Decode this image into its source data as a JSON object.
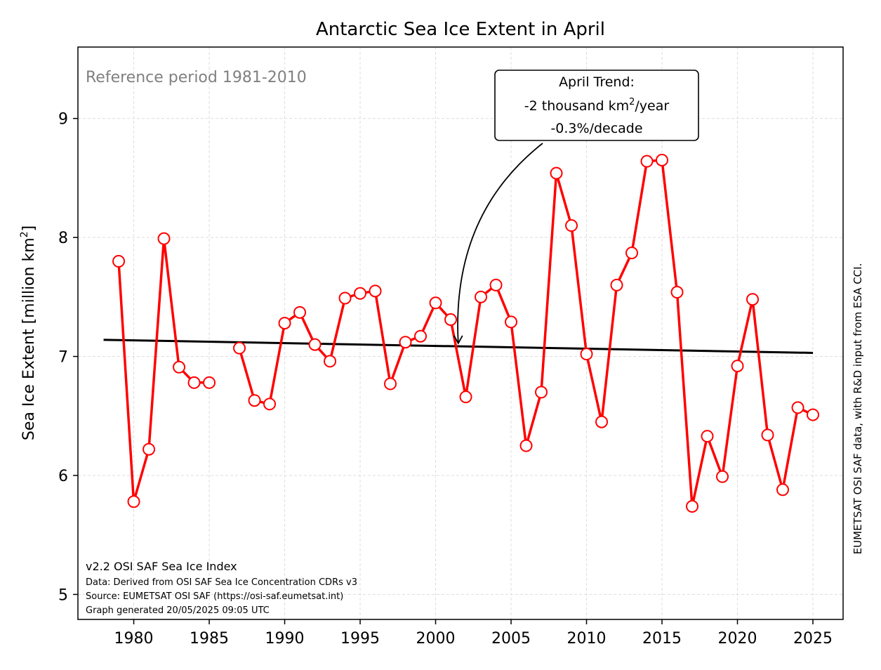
{
  "chart_data": {
    "type": "line",
    "title": "Antarctic Sea Ice Extent in April",
    "xlabel": "",
    "ylabel_main": "Sea Ice Extent [million km",
    "ylabel_sup": "2",
    "ylabel_end": "]",
    "xlim": [
      1976.3,
      2027.0
    ],
    "ylim": [
      4.79,
      9.6
    ],
    "xticks": [
      1980,
      1985,
      1990,
      1995,
      2000,
      2005,
      2010,
      2015,
      2020,
      2025
    ],
    "yticks": [
      5,
      6,
      7,
      8,
      9
    ],
    "grid": true,
    "reference_label": "Reference period 1981-2010",
    "series": [
      {
        "color": "#ff0000",
        "segments": [
          [
            {
              "x": 1979,
              "y": 7.8
            },
            {
              "x": 1980,
              "y": 5.78
            },
            {
              "x": 1981,
              "y": 6.22
            },
            {
              "x": 1982,
              "y": 7.99
            },
            {
              "x": 1983,
              "y": 6.91
            },
            {
              "x": 1984,
              "y": 6.78
            },
            {
              "x": 1985,
              "y": 6.78
            }
          ],
          [
            {
              "x": 1987,
              "y": 7.07
            },
            {
              "x": 1988,
              "y": 6.63
            },
            {
              "x": 1989,
              "y": 6.6
            },
            {
              "x": 1990,
              "y": 7.28
            },
            {
              "x": 1991,
              "y": 7.37
            },
            {
              "x": 1992,
              "y": 7.1
            },
            {
              "x": 1993,
              "y": 6.96
            },
            {
              "x": 1994,
              "y": 7.49
            },
            {
              "x": 1995,
              "y": 7.53
            },
            {
              "x": 1996,
              "y": 7.55
            },
            {
              "x": 1997,
              "y": 6.77
            },
            {
              "x": 1998,
              "y": 7.12
            },
            {
              "x": 1999,
              "y": 7.17
            },
            {
              "x": 2000,
              "y": 7.45
            },
            {
              "x": 2001,
              "y": 7.31
            },
            {
              "x": 2002,
              "y": 6.66
            },
            {
              "x": 2003,
              "y": 7.5
            },
            {
              "x": 2004,
              "y": 7.6
            },
            {
              "x": 2005,
              "y": 7.29
            },
            {
              "x": 2006,
              "y": 6.25
            },
            {
              "x": 2007,
              "y": 6.7
            },
            {
              "x": 2008,
              "y": 8.54
            },
            {
              "x": 2009,
              "y": 8.1
            },
            {
              "x": 2010,
              "y": 7.02
            },
            {
              "x": 2011,
              "y": 6.45
            },
            {
              "x": 2012,
              "y": 7.6
            },
            {
              "x": 2013,
              "y": 7.87
            },
            {
              "x": 2014,
              "y": 8.64
            },
            {
              "x": 2015,
              "y": 8.65
            },
            {
              "x": 2016,
              "y": 7.54
            },
            {
              "x": 2017,
              "y": 5.74
            },
            {
              "x": 2018,
              "y": 6.33
            },
            {
              "x": 2019,
              "y": 5.99
            },
            {
              "x": 2020,
              "y": 6.92
            },
            {
              "x": 2021,
              "y": 7.48
            },
            {
              "x": 2022,
              "y": 6.34
            },
            {
              "x": 2023,
              "y": 5.88
            },
            {
              "x": 2024,
              "y": 6.57
            },
            {
              "x": 2025,
              "y": 6.51
            }
          ]
        ]
      }
    ],
    "trend": {
      "color": "#000000",
      "points": [
        {
          "x": 1978,
          "y": 7.14
        },
        {
          "x": 2025,
          "y": 7.03
        }
      ]
    },
    "trend_annotation": {
      "line1": "April Trend:",
      "line2_main": "-2 thousand km",
      "line2_sup": "2",
      "line2_end": "/year",
      "line3": "-0.3%/decade",
      "arrow_target": {
        "x": 2001.5,
        "y": 7.11
      }
    },
    "footer": {
      "line1": "v2.2 OSI SAF Sea Ice Index",
      "line2": "Data: Derived from OSI SAF Sea Ice Concentration CDRs v3",
      "line3": "Source: EUMETSAT OSI SAF (https://osi-saf.eumetsat.int)",
      "line4": "Graph generated 20/05/2025 09:05 UTC"
    },
    "side_credit": "EUMETSAT OSI SAF data, with R&D input from ESA CCI."
  }
}
